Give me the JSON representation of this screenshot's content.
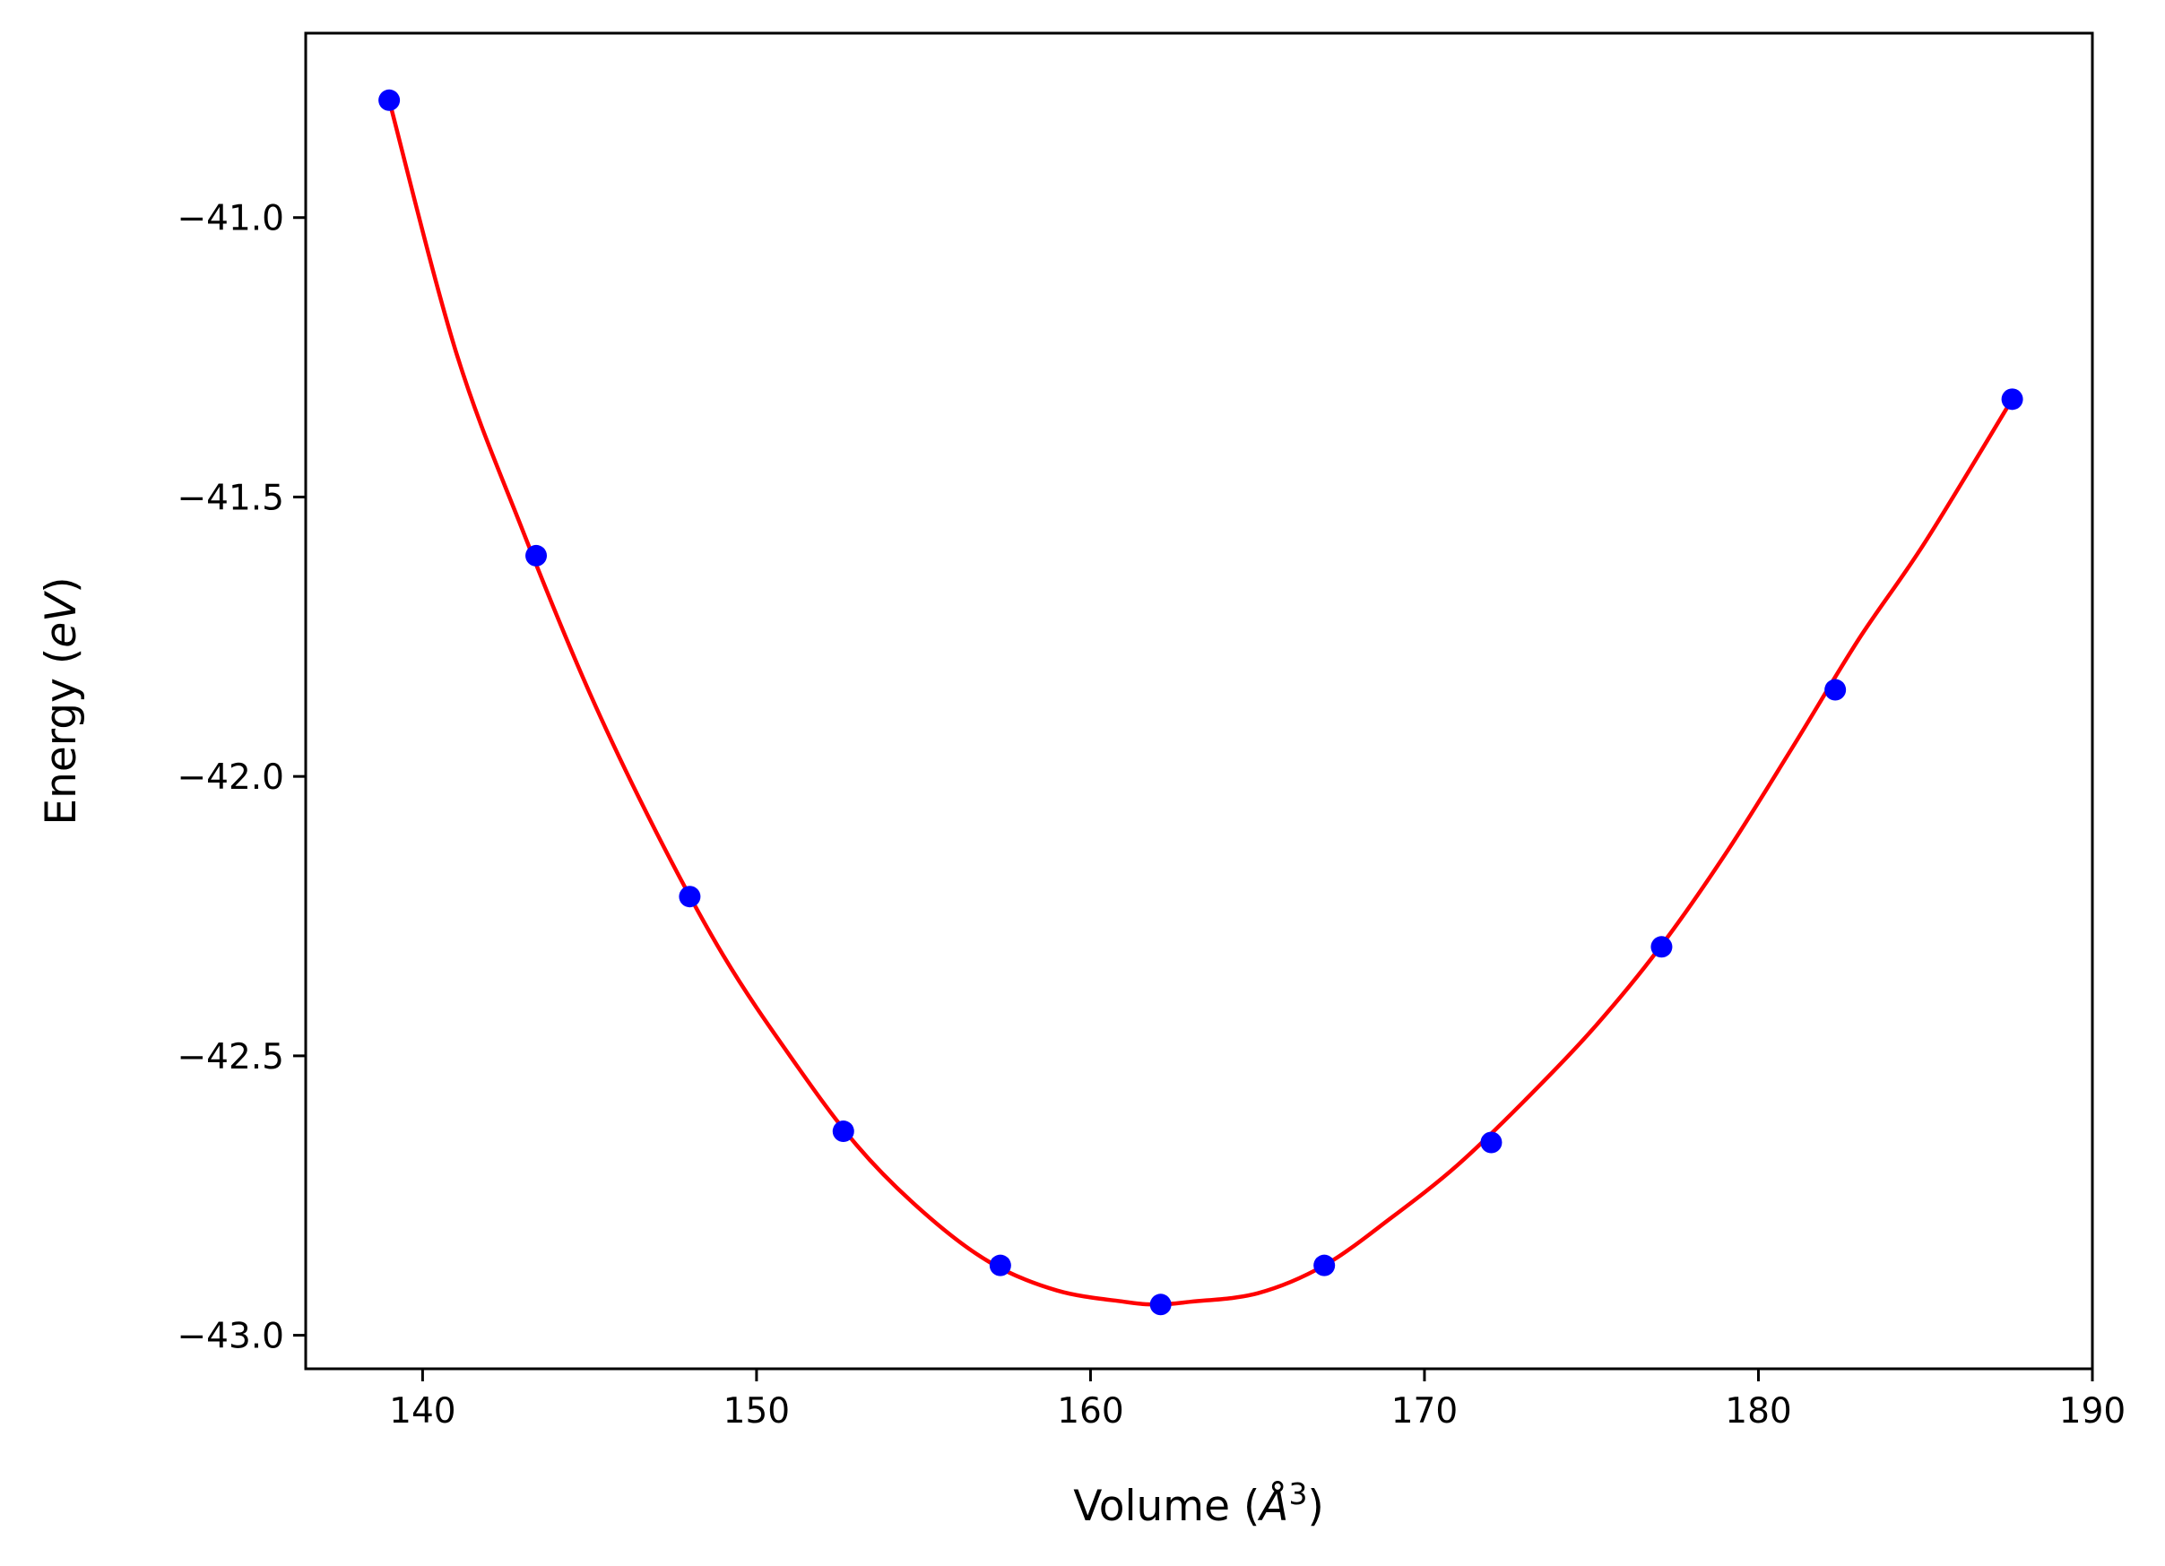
{
  "chart_data": {
    "type": "line",
    "title": "",
    "xlabel": {
      "text": "Volume",
      "unit": "Å",
      "exponent": "3"
    },
    "ylabel": {
      "text": "Energy",
      "unit": "eV"
    },
    "xlim": [
      136.5,
      190
    ],
    "ylim": [
      -43.06,
      -40.67
    ],
    "xticks": [
      140,
      150,
      160,
      170,
      180,
      190
    ],
    "xtick_labels": [
      "140",
      "150",
      "160",
      "170",
      "180",
      "190"
    ],
    "yticks": [
      -41.0,
      -41.5,
      -42.0,
      -42.5,
      -43.0
    ],
    "ytick_labels": [
      "−41.0",
      "−41.5",
      "−42.0",
      "−42.5",
      "−43.0"
    ],
    "grid": false,
    "legend": "none",
    "series": [
      {
        "kind": "scatter",
        "color": "#0000ff",
        "x": [
          139.0,
          143.4,
          148.0,
          152.6,
          157.3,
          162.1,
          167.0,
          172.0,
          177.1,
          182.3,
          187.6
        ],
        "y": [
          -40.79,
          -41.605,
          -42.215,
          -42.635,
          -42.875,
          -42.945,
          -42.875,
          -42.655,
          -42.305,
          -41.845,
          -41.325
        ]
      },
      {
        "kind": "line",
        "color": "#ff0000",
        "x": [
          139.0,
          141.0,
          143.0,
          145.0,
          147.0,
          149.0,
          151.0,
          153.0,
          155.0,
          157.0,
          159.0,
          161.0,
          162.0,
          163.0,
          165.0,
          167.0,
          169.0,
          171.0,
          173.0,
          175.0,
          177.0,
          179.0,
          181.0,
          183.0,
          185.0,
          187.6
        ],
        "y": [
          -40.79,
          -41.24,
          -41.56,
          -41.85,
          -42.1,
          -42.32,
          -42.5,
          -42.66,
          -42.78,
          -42.87,
          -42.92,
          -42.94,
          -42.945,
          -42.94,
          -42.925,
          -42.875,
          -42.79,
          -42.695,
          -42.58,
          -42.455,
          -42.31,
          -42.14,
          -41.95,
          -41.755,
          -41.58,
          -41.325
        ]
      }
    ]
  }
}
